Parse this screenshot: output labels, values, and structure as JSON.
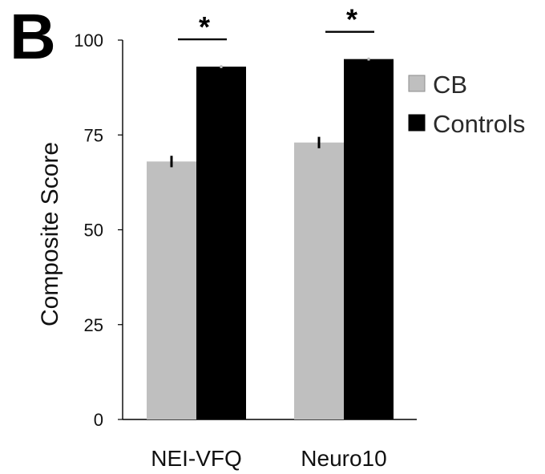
{
  "panel_label": "B",
  "chart_data": {
    "type": "bar",
    "categories": [
      "NEI-VFQ",
      "Neuro10"
    ],
    "series": [
      {
        "name": "CB",
        "values": [
          68,
          73
        ],
        "errors": [
          1.5,
          1.5
        ],
        "color": "#bfbfbf"
      },
      {
        "name": "Controls",
        "values": [
          93,
          95
        ],
        "errors": [
          0.4,
          0.4
        ],
        "color": "#000000"
      }
    ],
    "ylabel": "Composite Score",
    "xlabel": "",
    "ylim": [
      0,
      100
    ],
    "yticks": [
      0,
      25,
      50,
      75,
      100
    ],
    "significance": [
      "*",
      "*"
    ],
    "legend": {
      "position": "right-top",
      "entries": [
        "CB",
        "Controls"
      ]
    },
    "grid": false
  }
}
